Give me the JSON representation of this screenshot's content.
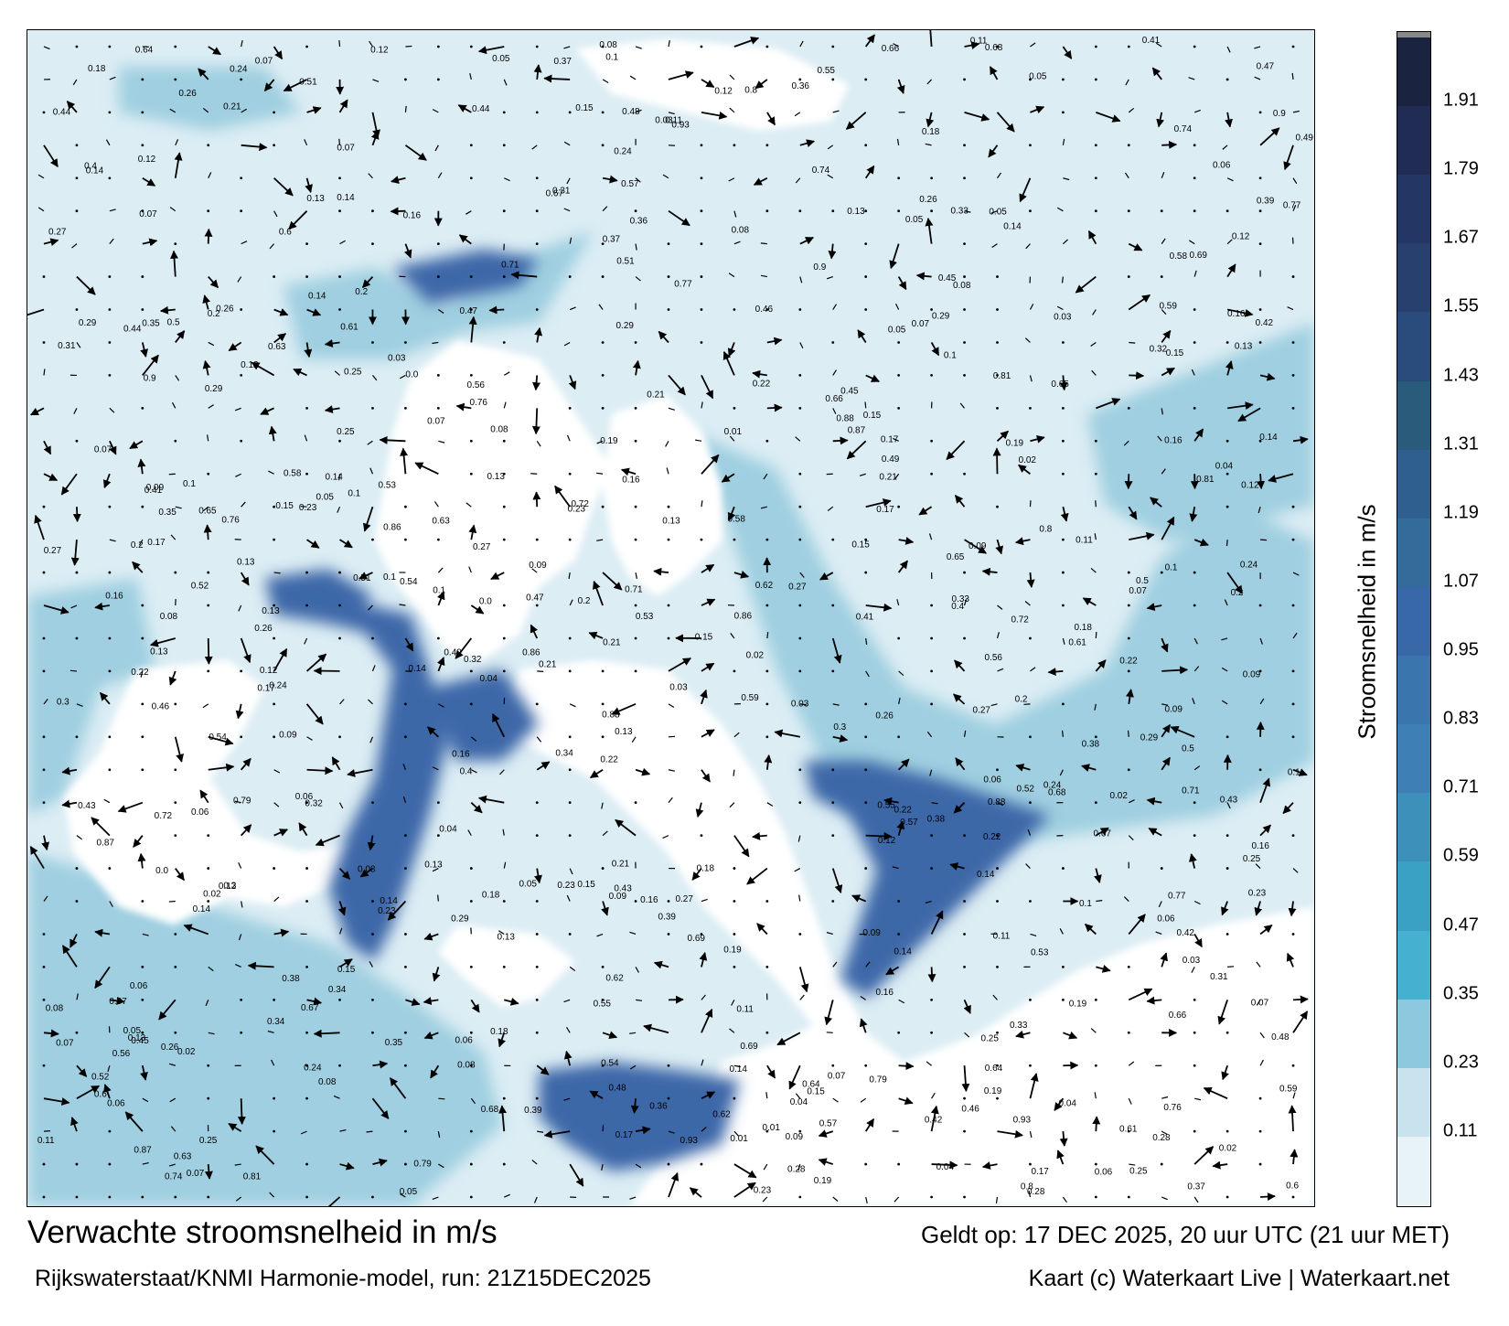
{
  "colors": {
    "land": "#ffffff",
    "sea_light": "#dcedf4",
    "sea_mid": "#9fcfe0",
    "sea_strong": "#5aa6c8",
    "current_fast": "#3d68a8",
    "current_max": "#2c4e8e",
    "arrow": "#000000"
  },
  "colorbar": {
    "title": "Stroomsnelheid in m/s",
    "ticks": [
      "1.91",
      "1.79",
      "1.67",
      "1.55",
      "1.43",
      "1.31",
      "1.19",
      "1.07",
      "0.95",
      "0.83",
      "0.71",
      "0.59",
      "0.47",
      "0.35",
      "0.23",
      "0.11"
    ],
    "colors": [
      "#1a2340",
      "#202c54",
      "#243664",
      "#28406e",
      "#2a4c7c",
      "#2b5b7a",
      "#2e5f8f",
      "#336b9b",
      "#3868a8",
      "#3a75ad",
      "#3e80b5",
      "#3d90b9",
      "#3aa0c4",
      "#45b0d0",
      "#8cc8de",
      "#c8e3ee",
      "#e8f3f8"
    ]
  },
  "map": {
    "labels": [
      "0.22",
      "0.23",
      "0.24",
      "0.2",
      "0.25",
      "0.16",
      "0.15",
      "0.14",
      "0.13",
      "0.09",
      "0.11",
      "0.12",
      "0.18",
      "0.17",
      "0.1",
      "0.16",
      "0.15",
      "0.14",
      "0.12",
      "0.13",
      "0.06",
      "0.05",
      "0.07",
      "0.08",
      "0.19",
      "0.17",
      "0.14",
      "0.06",
      "0.03",
      "0.07",
      "0.04",
      "0.05",
      "0.02",
      "0.06",
      "0.08",
      "0.07",
      "0.1",
      "0.07",
      "0.09",
      "0.08",
      "0.16",
      "0.28",
      "0.29",
      "0.42",
      "0.43",
      "0.45",
      "0.21",
      "0.25",
      "0.12",
      "0.13",
      "0.01",
      "0.02",
      "0.03",
      "0.05",
      "0.13",
      "0.15",
      "0.24",
      "0.26",
      "0.3",
      "0.34",
      "0.36",
      "0.31",
      "0.29",
      "0.27",
      "0.33",
      "0.35",
      "0.41",
      "0.46",
      "0.38",
      "0.4",
      "0.54",
      "0.58",
      "0.62",
      "0.65",
      "0.66",
      "0.69",
      "0.71",
      "0.76",
      "0.77",
      "0.8",
      "0.86",
      "0.87",
      "0.88",
      "0.9",
      "0.79",
      "0.81",
      "0.93",
      "0.59",
      "0.56",
      "0.53",
      "0.55",
      "0.57",
      "0.51",
      "0.49",
      "0.47",
      "0.52",
      "0.6",
      "0.61",
      "0.63",
      "0.64",
      "0.67",
      "0.68",
      "0.74",
      "0.72",
      "0.39",
      "0.37",
      "0.32",
      "0.44",
      "0.48",
      "0.5",
      "0.23",
      "0.21",
      "0.2",
      "0.22",
      "0.19",
      "0.18",
      "0.11",
      "0.14",
      "0.1",
      "0.09",
      "0.04",
      "0.0",
      "0.26",
      "0.27"
    ]
  },
  "footer": {
    "title": "Verwachte stroomsnelheid in m/s",
    "valid": "Geldt op: 17 DEC 2025, 20 uur UTC (21 uur MET)",
    "model": "Rijkswaterstaat/KNMI Harmonie-model, run: 21Z15DEC2025",
    "credit": "Kaart (c) Waterkaart Live | Waterkaart.net"
  }
}
